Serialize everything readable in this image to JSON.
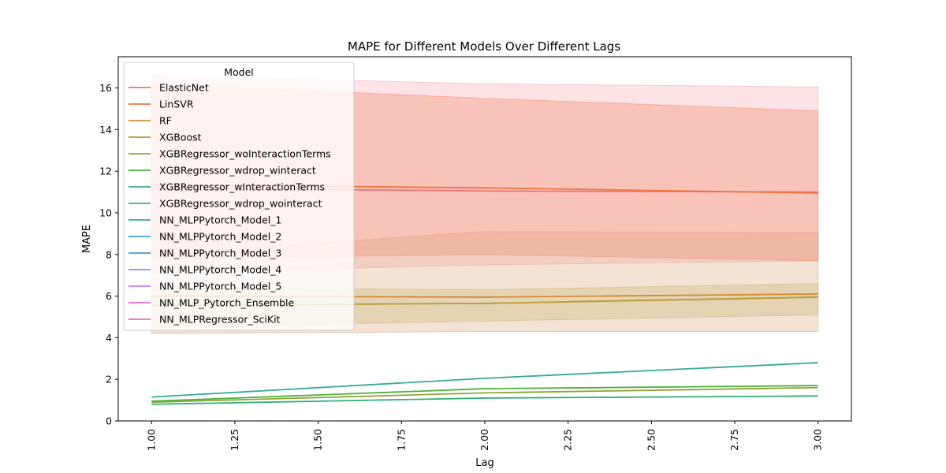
{
  "chart_data": {
    "type": "line",
    "title": "MAPE for Different Models Over Different Lags",
    "xlabel": "Lag",
    "ylabel": "MAPE",
    "xlim": [
      0.9,
      3.1
    ],
    "ylim": [
      0,
      17.5
    ],
    "xticks": [
      "1.00",
      "1.25",
      "1.50",
      "1.75",
      "2.00",
      "2.25",
      "2.50",
      "2.75",
      "3.00"
    ],
    "yticks": [
      "0",
      "2",
      "4",
      "6",
      "8",
      "10",
      "12",
      "14",
      "16"
    ],
    "x": [
      1,
      2,
      3
    ],
    "grid": false,
    "legend": {
      "title": "Model",
      "placement": "upper-left",
      "entries": [
        {
          "name": "ElasticNet",
          "color": "#f0717a"
        },
        {
          "name": "LinSVR",
          "color": "#ed7540"
        },
        {
          "name": "RF",
          "color": "#d18b32"
        },
        {
          "name": "XGBoost",
          "color": "#b39b30"
        },
        {
          "name": "XGBRegressor_woInteractionTerms",
          "color": "#8fa535"
        },
        {
          "name": "XGBRegressor_wdrop_winteract",
          "color": "#4fb03c"
        },
        {
          "name": "XGBRegressor_wInteractionTerms",
          "color": "#33b07a"
        },
        {
          "name": "XGBRegressor_wdrop_wointeract",
          "color": "#34ab97"
        },
        {
          "name": "NN_MLPPytorch_Model_1",
          "color": "#37a9ac"
        },
        {
          "name": "NN_MLPPytorch_Model_2",
          "color": "#39a6c2"
        },
        {
          "name": "NN_MLPPytorch_Model_3",
          "color": "#3c9fdc"
        },
        {
          "name": "NN_MLPPytorch_Model_4",
          "color": "#8e8ef0"
        },
        {
          "name": "NN_MLPPytorch_Model_5",
          "color": "#c77be8"
        },
        {
          "name": "NN_MLP_Pytorch_Ensemble",
          "color": "#e767d6"
        },
        {
          "name": "NN_MLPRegressor_SciKit",
          "color": "#f16ab2"
        }
      ]
    },
    "bands": [
      {
        "series": "ElasticNet",
        "lower": [
          7.1,
          7.5,
          7.7
        ],
        "upper": [
          16.6,
          16.2,
          16.05
        ],
        "color": "#f7a0ab",
        "opacity": 0.3
      },
      {
        "series": "LinSVR",
        "lower": [
          7.8,
          8.0,
          7.7
        ],
        "upper": [
          16.2,
          15.5,
          14.9
        ],
        "color": "#f08a68",
        "opacity": 0.35
      },
      {
        "series": "RF",
        "lower": [
          4.2,
          4.3,
          4.3
        ],
        "upper": [
          8.0,
          9.1,
          9.05
        ],
        "color": "#d9a070",
        "opacity": 0.3
      },
      {
        "series": "XGBoost",
        "lower": [
          4.5,
          4.8,
          5.1
        ],
        "upper": [
          6.4,
          6.3,
          6.6
        ],
        "color": "#c8b06a",
        "opacity": 0.3
      }
    ],
    "series": [
      {
        "name": "ElasticNet",
        "values": [
          11.2,
          11.05,
          11.0
        ],
        "color": "#f0717a"
      },
      {
        "name": "LinSVR",
        "values": [
          11.35,
          11.2,
          10.95
        ],
        "color": "#ed7540"
      },
      {
        "name": "RF",
        "values": [
          6.0,
          5.95,
          6.1
        ],
        "color": "#d18b32"
      },
      {
        "name": "XGBoost",
        "values": [
          5.55,
          5.65,
          5.95
        ],
        "color": "#b39b30"
      },
      {
        "name": "XGBRegressor_woInteractionTerms",
        "values": [
          0.9,
          1.35,
          1.6
        ],
        "color": "#8fa535"
      },
      {
        "name": "XGBRegressor_wdrop_winteract",
        "values": [
          0.95,
          1.55,
          1.7
        ],
        "color": "#4fb03c"
      },
      {
        "name": "XGBRegressor_wInteractionTerms",
        "values": [
          0.8,
          1.1,
          1.2
        ],
        "color": "#33b07a"
      },
      {
        "name": "XGBRegressor_wdrop_wointeract",
        "values": [
          1.15,
          2.05,
          2.8
        ],
        "color": "#34ab97"
      }
    ]
  }
}
